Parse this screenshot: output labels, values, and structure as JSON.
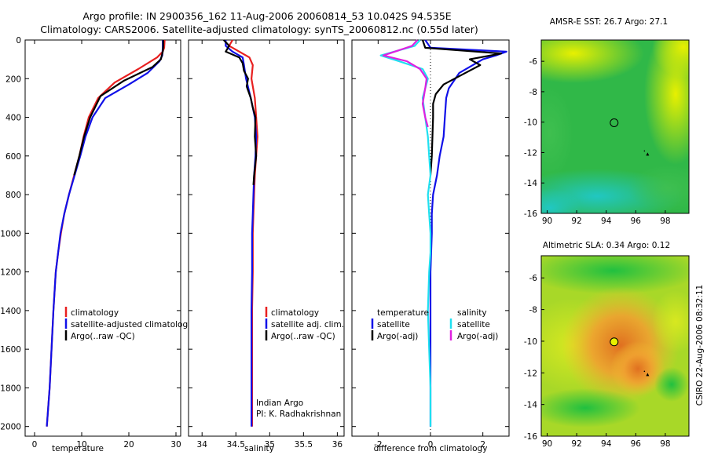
{
  "header": {
    "line1": "Argo profile: IN 2900356_162 11-Aug-2006 20060814_53 10.042S 94.535E",
    "line2": "Climatology: CARS2006. Satellite-adjusted climatology: synTS_20060812.nc (0.55d later)"
  },
  "colors": {
    "climatology": "#e82020",
    "satellite": "#1010e8",
    "argo": "#000000",
    "satellite_salinity": "#20e0f0",
    "argo_adj_salinity": "#e020e0"
  },
  "chart_data": [
    {
      "type": "line",
      "id": "temperature",
      "xlabel": "temperature",
      "ylabel": "",
      "xlim": [
        -2,
        31
      ],
      "ylim": [
        2050,
        0
      ],
      "xticks": [
        0,
        10,
        20,
        30
      ],
      "yticks": [
        0,
        200,
        400,
        600,
        800,
        1000,
        1200,
        1400,
        1600,
        1800,
        2000
      ],
      "legend": [
        "climatology",
        "satellite-adjusted climatology",
        "Argo(..raw -QC)"
      ],
      "legend_position": "lower-center",
      "series": [
        {
          "name": "climatology",
          "color_key": "climatology",
          "x": [
            27.6,
            27.5,
            27.2,
            26.0,
            22.0,
            17.0,
            13.5,
            11.5,
            10.4,
            9.5,
            8.4,
            7.3,
            6.3,
            5.6,
            5.0,
            4.5,
            4.0,
            3.6,
            3.2,
            2.9,
            2.6
          ],
          "y": [
            0,
            40,
            60,
            90,
            150,
            220,
            300,
            400,
            500,
            600,
            700,
            800,
            900,
            1000,
            1100,
            1200,
            1400,
            1600,
            1800,
            1900,
            2000
          ]
        },
        {
          "name": "satellite-adjusted climatology",
          "color_key": "satellite",
          "x": [
            27.2,
            27.2,
            27.1,
            26.5,
            24.0,
            20.0,
            15.0,
            12.3,
            10.8,
            9.7,
            8.5,
            7.3,
            6.3,
            5.5,
            5.0,
            4.5,
            4.0,
            3.6,
            3.2,
            2.9,
            2.6
          ],
          "y": [
            0,
            40,
            80,
            110,
            170,
            230,
            300,
            400,
            500,
            600,
            700,
            800,
            900,
            1000,
            1100,
            1200,
            1400,
            1600,
            1800,
            1900,
            2000
          ]
        },
        {
          "name": "Argo(..raw -QC)",
          "color_key": "argo",
          "x": [
            27.3,
            27.3,
            27.2,
            26.8,
            25.0,
            19.0,
            14.0,
            11.8,
            10.5,
            9.5,
            8.4
          ],
          "y": [
            0,
            30,
            60,
            100,
            140,
            210,
            290,
            400,
            500,
            600,
            700
          ]
        }
      ]
    },
    {
      "type": "line",
      "id": "salinity",
      "xlabel": "salinity",
      "xlim": [
        33.8,
        36.1
      ],
      "ylim": [
        2050,
        0
      ],
      "xticks": [
        34,
        34.5,
        35,
        35.5,
        36
      ],
      "legend": [
        "climatology",
        "satellite adj. clim.",
        "Argo(..raw -QC)"
      ],
      "legend_position": "lower-right",
      "annotation": [
        "Indian Argo",
        "PI: K. Radhakrishnan"
      ],
      "series": [
        {
          "name": "climatology",
          "color_key": "climatology",
          "x": [
            34.45,
            34.4,
            34.55,
            34.7,
            34.75,
            34.73,
            34.78,
            34.8,
            34.82,
            34.8,
            34.78,
            34.77,
            34.76,
            34.75,
            34.75,
            34.74,
            34.74,
            34.74,
            34.74,
            34.74
          ],
          "y": [
            0,
            30,
            60,
            90,
            130,
            200,
            300,
            400,
            500,
            600,
            700,
            800,
            900,
            1000,
            1200,
            1400,
            1600,
            1800,
            1900,
            2000
          ]
        },
        {
          "name": "satellite adj. clim.",
          "color_key": "satellite",
          "x": [
            34.35,
            34.35,
            34.45,
            34.6,
            34.62,
            34.65,
            34.72,
            34.78,
            34.8,
            34.79,
            34.77,
            34.76,
            34.75,
            34.74,
            34.74,
            34.73,
            34.73,
            34.73,
            34.73,
            34.73
          ],
          "y": [
            0,
            30,
            60,
            90,
            130,
            200,
            300,
            400,
            500,
            600,
            700,
            800,
            900,
            1000,
            1200,
            1400,
            1600,
            1800,
            1900,
            2000
          ]
        },
        {
          "name": "Argo(..raw -QC)",
          "color_key": "argo",
          "x": [
            34.32,
            34.4,
            34.35,
            34.55,
            34.6,
            34.62,
            34.68,
            34.66,
            34.72,
            34.75,
            34.79,
            34.78,
            34.8,
            34.77,
            34.76
          ],
          "y": [
            0,
            30,
            60,
            90,
            120,
            160,
            200,
            240,
            300,
            350,
            400,
            500,
            600,
            700,
            750
          ]
        }
      ]
    },
    {
      "type": "line",
      "id": "difference",
      "xlabel": "difference from climatology",
      "xlim": [
        -3,
        3
      ],
      "ylim": [
        2050,
        0
      ],
      "xticks": [
        -2,
        0,
        2
      ],
      "legend_titles": [
        "temperature",
        "salinity"
      ],
      "legend_left": [
        "satellite",
        "Argo(-adj)"
      ],
      "legend_right": [
        "satellite",
        "Argo(-adj)"
      ],
      "legend_position": "lower-center",
      "series": [
        {
          "name": "temperature satellite",
          "color_key": "satellite",
          "x": [
            -0.2,
            0.0,
            2.9,
            2.5,
            2.0,
            1.1,
            0.7,
            0.6,
            0.55,
            0.5,
            0.35,
            0.25,
            0.1,
            0.05,
            0.05,
            0.0,
            0.0,
            0.0,
            0.0,
            0.0
          ],
          "y": [
            0,
            40,
            60,
            80,
            100,
            170,
            250,
            300,
            400,
            500,
            600,
            700,
            800,
            900,
            1000,
            1200,
            1400,
            1600,
            1800,
            2000
          ]
        },
        {
          "name": "temperature Argo(-adj)",
          "color_key": "argo",
          "x": [
            -0.3,
            -0.2,
            2.7,
            1.5,
            1.9,
            1.2,
            0.5,
            0.2,
            0.1,
            0.1,
            0.05,
            0.0
          ],
          "y": [
            0,
            40,
            70,
            100,
            130,
            180,
            230,
            280,
            330,
            400,
            600,
            700
          ]
        },
        {
          "name": "salinity satellite",
          "color_key": "satellite_salinity",
          "x": [
            -0.4,
            -0.6,
            -1.9,
            -1.2,
            -0.3,
            -0.1,
            -0.3,
            -0.2,
            -0.1,
            -0.05,
            0.0,
            -0.1,
            -0.05,
            0.0,
            0.0,
            -0.05,
            -0.1,
            -0.05,
            0.0,
            0.0
          ],
          "y": [
            0,
            30,
            80,
            110,
            150,
            200,
            300,
            400,
            500,
            600,
            700,
            800,
            900,
            1000,
            1100,
            1200,
            1400,
            1600,
            1800,
            2000
          ]
        },
        {
          "name": "salinity Argo(-adj)",
          "color_key": "argo_adj_salinity",
          "x": [
            -0.5,
            -0.7,
            -1.8,
            -0.9,
            -0.4,
            -0.15,
            -0.2,
            -0.3,
            -0.2,
            -0.1
          ],
          "y": [
            0,
            30,
            80,
            110,
            150,
            200,
            250,
            330,
            400,
            450
          ]
        }
      ]
    },
    {
      "type": "heatmap",
      "id": "sst-map",
      "title": "AMSR-E SST: 26.7 Argo: 27.1",
      "xlim": [
        89.6,
        99.6
      ],
      "ylim": [
        -16,
        -4.6
      ],
      "xticks": [
        90,
        92,
        94,
        96,
        98
      ],
      "yticks": [
        -6,
        -8,
        -10,
        -12,
        -14,
        -16
      ],
      "marker": {
        "lon": 94.535,
        "lat": -10.042,
        "fill": "none"
      },
      "triangle": {
        "lon": 96.8,
        "lat": -12.1
      }
    },
    {
      "type": "heatmap",
      "id": "sla-map",
      "title": "Altimetric SLA: 0.34 Argo: 0.12",
      "xlim": [
        89.6,
        99.6
      ],
      "ylim": [
        -16,
        -4.6
      ],
      "xticks": [
        90,
        92,
        94,
        96,
        98
      ],
      "yticks": [
        -6,
        -8,
        -10,
        -12,
        -14,
        -16
      ],
      "marker": {
        "lon": 94.535,
        "lat": -10.042,
        "fill": "#e8f000"
      },
      "triangle": {
        "lon": 96.8,
        "lat": -12.1
      }
    }
  ],
  "footer": {
    "stamp": "CSIRO 22-Aug-2006 08:32:11"
  }
}
